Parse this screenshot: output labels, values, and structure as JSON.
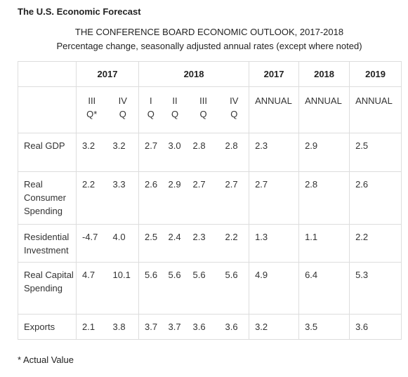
{
  "header": {
    "title": "The U.S. Economic Forecast",
    "caption": "THE CONFERENCE BOARD ECONOMIC OUTLOOK, 2017-2018",
    "subcaption": "Percentage change, seasonally adjusted annual rates (except where noted)"
  },
  "table": {
    "groups": [
      "2017",
      "2018",
      "2017",
      "2018",
      "2019"
    ],
    "columns": [
      [
        "III",
        "Q*"
      ],
      [
        "IV",
        "Q"
      ],
      [
        "I",
        "Q"
      ],
      [
        "II",
        "Q"
      ],
      [
        "III",
        "Q"
      ],
      [
        "IV",
        "Q"
      ],
      [
        "ANNUAL"
      ],
      [
        "ANNUAL"
      ],
      [
        "ANNUAL"
      ]
    ],
    "rows": [
      [
        "Real GDP",
        "3.2",
        "3.2",
        "2.7",
        "3.0",
        "2.8",
        "2.8",
        "2.3",
        "2.9",
        "2.5"
      ],
      [
        "Real Consumer Spending",
        "2.2",
        "3.3",
        "2.6",
        "2.9",
        "2.7",
        "2.7",
        "2.7",
        "2.8",
        "2.6"
      ],
      [
        "Residential Investment",
        "-4.7",
        "4.0",
        "2.5",
        "2.4",
        "2.3",
        "2.2",
        "1.3",
        "1.1",
        "2.2"
      ],
      [
        "Real Capital Spending",
        "4.7",
        "10.1",
        "5.6",
        "5.6",
        "5.6",
        "5.6",
        "4.9",
        "6.4",
        "5.3"
      ],
      [
        "Exports",
        "2.1",
        "3.8",
        "3.7",
        "3.7",
        "3.6",
        "3.6",
        "3.2",
        "3.5",
        "3.6"
      ]
    ]
  },
  "footnote": "* Actual Value"
}
